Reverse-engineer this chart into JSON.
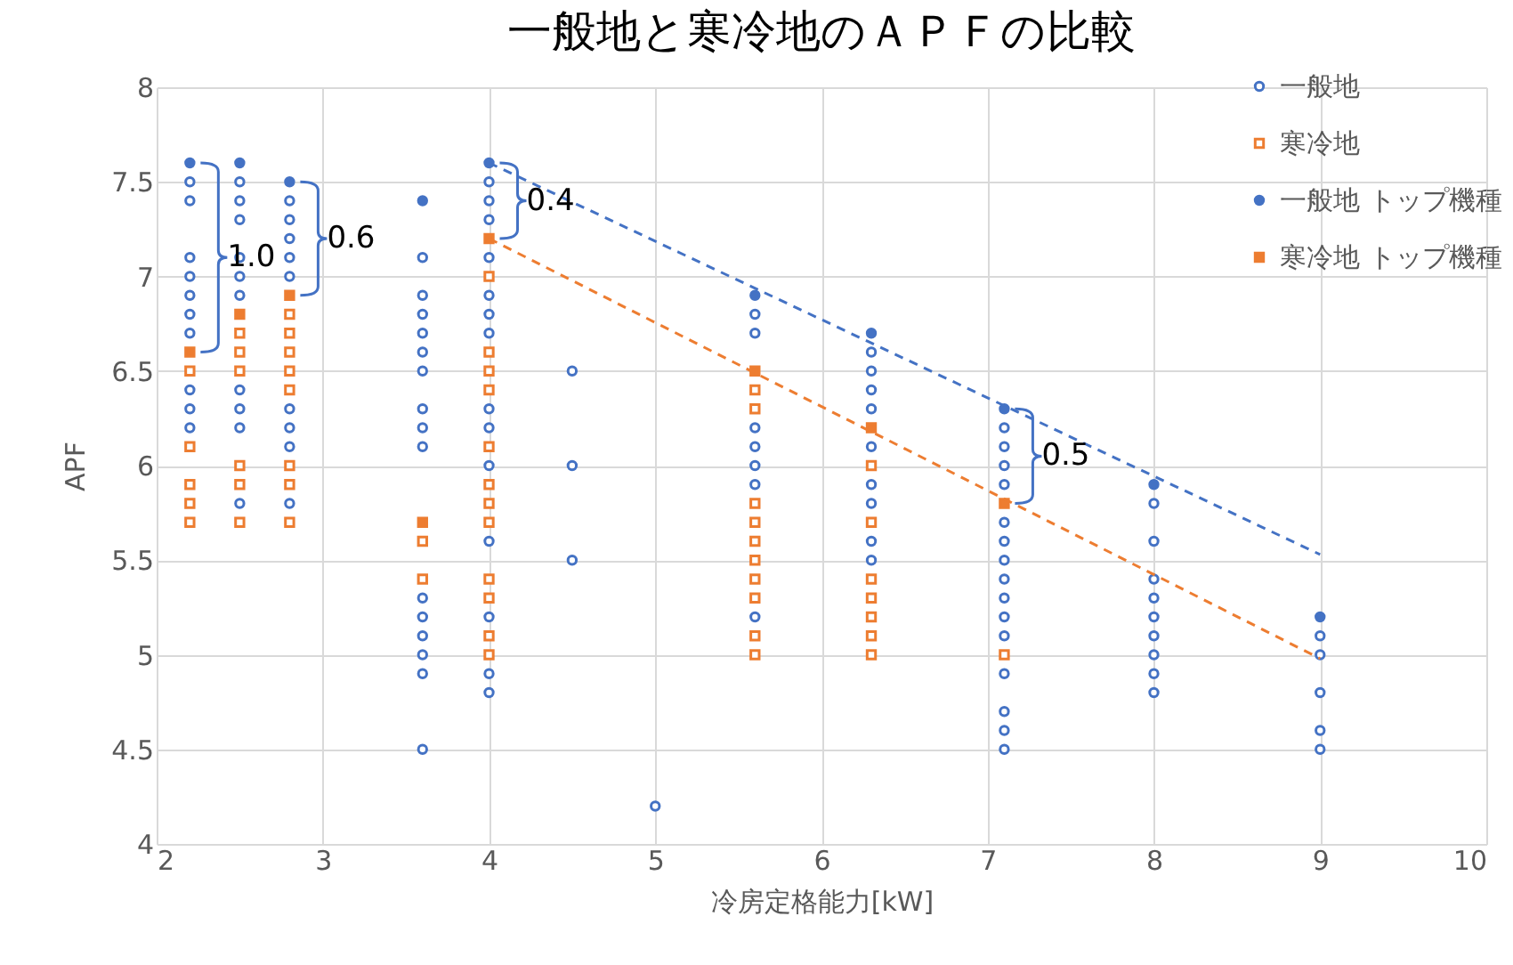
{
  "chart_data": {
    "type": "scatter",
    "title": "一般地と寒冷地のＡＰＦの比較",
    "xlabel": "冷房定格能力[kW]",
    "ylabel": "APF",
    "xlim": [
      2,
      10
    ],
    "xticks": [
      2,
      3,
      4,
      5,
      6,
      7,
      8,
      9,
      10
    ],
    "ylim": [
      4,
      8
    ],
    "yticks": [
      4,
      4.5,
      5,
      5.5,
      6,
      6.5,
      7,
      7.5,
      8
    ],
    "grid": true,
    "legend": "top right",
    "series": [
      {
        "name": "一般地",
        "color": "#4472c4",
        "marker": "circle",
        "x": [
          2.2,
          2.2,
          2.2,
          2.2,
          2.2,
          2.2,
          2.2,
          2.2,
          2.2,
          2.2,
          2.5,
          2.5,
          2.5,
          2.5,
          2.5,
          2.5,
          2.5,
          2.5,
          2.5,
          2.5,
          2.8,
          2.8,
          2.8,
          2.8,
          2.8,
          2.8,
          2.8,
          2.8,
          2.8,
          3.6,
          3.6,
          3.6,
          3.6,
          3.6,
          3.6,
          3.6,
          3.6,
          3.6,
          3.6,
          3.6,
          3.6,
          3.6,
          3.6,
          3.6,
          4,
          4,
          4,
          4,
          4,
          4,
          4,
          4,
          4,
          4,
          4,
          4,
          4,
          4,
          4.5,
          4.5,
          4.5,
          5,
          5.6,
          5.6,
          5.6,
          5.6,
          5.6,
          5.6,
          5.6,
          6.3,
          6.3,
          6.3,
          6.3,
          6.3,
          6.3,
          6.3,
          6.3,
          6.3,
          7.1,
          7.1,
          7.1,
          7.1,
          7.1,
          7.1,
          7.1,
          7.1,
          7.1,
          7.1,
          7.1,
          7.1,
          7.1,
          7.1,
          7.1,
          8,
          8,
          8,
          8,
          8,
          8,
          8,
          8,
          8,
          9,
          9,
          9,
          9,
          9
        ],
        "values": [
          7.5,
          7.4,
          7.1,
          7.0,
          6.9,
          6.8,
          6.7,
          6.4,
          6.3,
          6.2,
          7.5,
          7.4,
          7.3,
          7.1,
          7.0,
          6.9,
          6.4,
          6.3,
          6.2,
          5.8,
          7.4,
          7.3,
          7.2,
          7.1,
          7.0,
          6.3,
          6.2,
          6.1,
          5.8,
          7.1,
          6.9,
          6.8,
          6.7,
          6.6,
          6.5,
          6.3,
          6.2,
          6.1,
          5.3,
          5.2,
          5.1,
          5.0,
          4.9,
          4.5,
          7.5,
          7.4,
          7.3,
          7.1,
          6.9,
          6.8,
          6.7,
          6.3,
          6.2,
          6.0,
          5.6,
          5.2,
          4.9,
          4.8,
          6.5,
          6.0,
          5.5,
          4.2,
          6.8,
          6.7,
          6.2,
          6.1,
          6.0,
          5.9,
          5.2,
          6.6,
          6.5,
          6.4,
          6.3,
          6.1,
          5.9,
          5.8,
          5.6,
          5.5,
          6.2,
          6.1,
          6.0,
          5.9,
          5.7,
          5.6,
          5.5,
          5.4,
          5.3,
          5.2,
          5.1,
          4.9,
          4.7,
          4.6,
          4.5,
          5.8,
          5.6,
          5.4,
          5.3,
          5.2,
          5.1,
          5.0,
          4.9,
          4.8,
          5.1,
          5.0,
          4.8,
          4.6,
          4.5
        ]
      },
      {
        "name": "寒冷地",
        "color": "#ed7d31",
        "marker": "square",
        "x": [
          2.2,
          2.2,
          2.2,
          2.2,
          2.2,
          2.5,
          2.5,
          2.5,
          2.5,
          2.5,
          2.5,
          2.8,
          2.8,
          2.8,
          2.8,
          2.8,
          2.8,
          2.8,
          2.8,
          3.6,
          3.6,
          4,
          4,
          4,
          4,
          4,
          4,
          4,
          4,
          4,
          4,
          4,
          4,
          5.6,
          5.6,
          5.6,
          5.6,
          5.6,
          5.6,
          5.6,
          5.6,
          5.6,
          5.6,
          6.3,
          6.3,
          6.3,
          6.3,
          6.3,
          6.3,
          6.3,
          7.1
        ],
        "values": [
          6.5,
          6.1,
          5.9,
          5.8,
          5.7,
          6.7,
          6.6,
          6.5,
          6.0,
          5.9,
          5.7,
          6.8,
          6.7,
          6.6,
          6.5,
          6.4,
          6.0,
          5.9,
          5.7,
          5.6,
          5.4,
          7.0,
          6.6,
          6.5,
          6.4,
          6.1,
          5.9,
          5.8,
          5.7,
          5.4,
          5.3,
          5.1,
          5.0,
          6.4,
          6.3,
          5.8,
          5.7,
          5.6,
          5.5,
          5.4,
          5.3,
          5.1,
          5.0,
          6.0,
          5.7,
          5.4,
          5.3,
          5.2,
          5.1,
          5.0,
          5.0
        ]
      },
      {
        "name": "一般地 トップ機種",
        "color": "#4472c4",
        "marker": "circle",
        "x": [
          2.2,
          2.5,
          2.8,
          3.6,
          4,
          5.6,
          6.3,
          7.1,
          8,
          9
        ],
        "values": [
          7.6,
          7.6,
          7.5,
          7.4,
          7.6,
          6.9,
          6.7,
          6.3,
          5.9,
          5.2
        ]
      },
      {
        "name": "寒冷地 トップ機種",
        "color": "#ed7d31",
        "marker": "square",
        "x": [
          2.2,
          2.5,
          2.8,
          3.6,
          4,
          5.6,
          6.3,
          7.1
        ],
        "values": [
          6.6,
          6.8,
          6.9,
          5.7,
          7.2,
          6.5,
          6.2,
          5.8
        ]
      },
      {
        "type": "line",
        "color": "#4472c4",
        "line_style": "dashed",
        "marker": "none",
        "x": [
          4,
          9
        ],
        "values": [
          7.6,
          5.53
        ]
      },
      {
        "type": "line",
        "color": "#ed7d31",
        "line_style": "dashed",
        "marker": "none",
        "x": [
          4,
          9
        ],
        "values": [
          7.2,
          4.98
        ]
      }
    ],
    "annotations": [
      {
        "text": "1.0",
        "x": 2.2,
        "y": 7.1
      },
      {
        "text": "0.6",
        "x": 2.8,
        "y": 7.2
      },
      {
        "text": "0.4",
        "x": 4,
        "y": 7.4
      },
      {
        "text": "0.5",
        "x": 7.1,
        "y": 6.05
      }
    ]
  }
}
